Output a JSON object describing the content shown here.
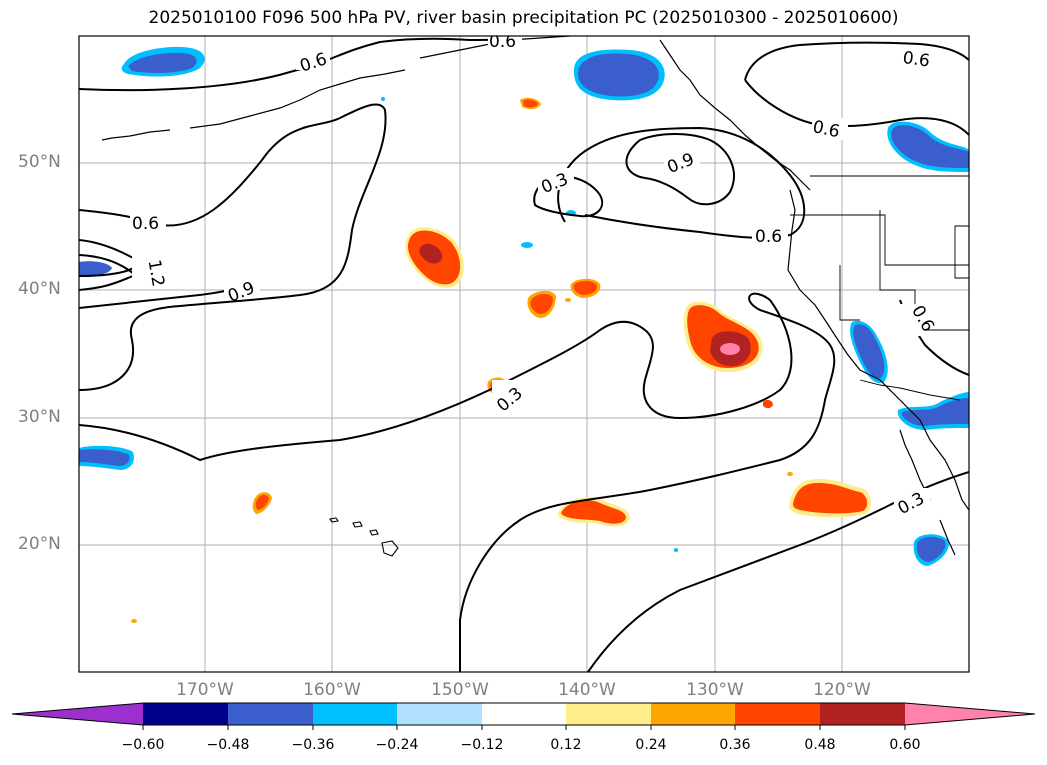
{
  "title": "2025010100 F096 500 hPa PV, river basin precipitation PC (2025010300 - 2025010600)",
  "latitude_labels": [
    "50°N",
    "40°N",
    "30°N",
    "20°N"
  ],
  "longitude_labels": [
    "170°W",
    "160°W",
    "150°W",
    "140°W",
    "130°W",
    "120°W"
  ],
  "contour_labels": [
    "0.6",
    "0.6",
    "0.6",
    "0.6",
    "0.6",
    "0.6",
    "1.2",
    "0.9",
    "0.9",
    "0.3",
    "0.3",
    "0.3",
    "0.6"
  ],
  "colorbar": {
    "tick_labels": [
      "−0.60",
      "−0.48",
      "−0.36",
      "−0.24",
      "−0.12",
      "0.12",
      "0.24",
      "0.36",
      "0.48",
      "0.60"
    ],
    "colors": [
      "#9b30cf",
      "#00008b",
      "#3a5fcd",
      "#00bfff",
      "#b0e2ff",
      "#ffffff",
      "#ffec8b",
      "#ffa500",
      "#ff4500",
      "#b22222",
      "#ff82ab"
    ]
  },
  "colors": {
    "negative_strong": "#3a5fcd",
    "negative_light": "#00bfff",
    "positive": "#ff4500",
    "positive_strong": "#b22222",
    "positive_max": "#ff82ab",
    "positive_light": "#ffec8b",
    "positive_mid": "#ffa500"
  }
}
